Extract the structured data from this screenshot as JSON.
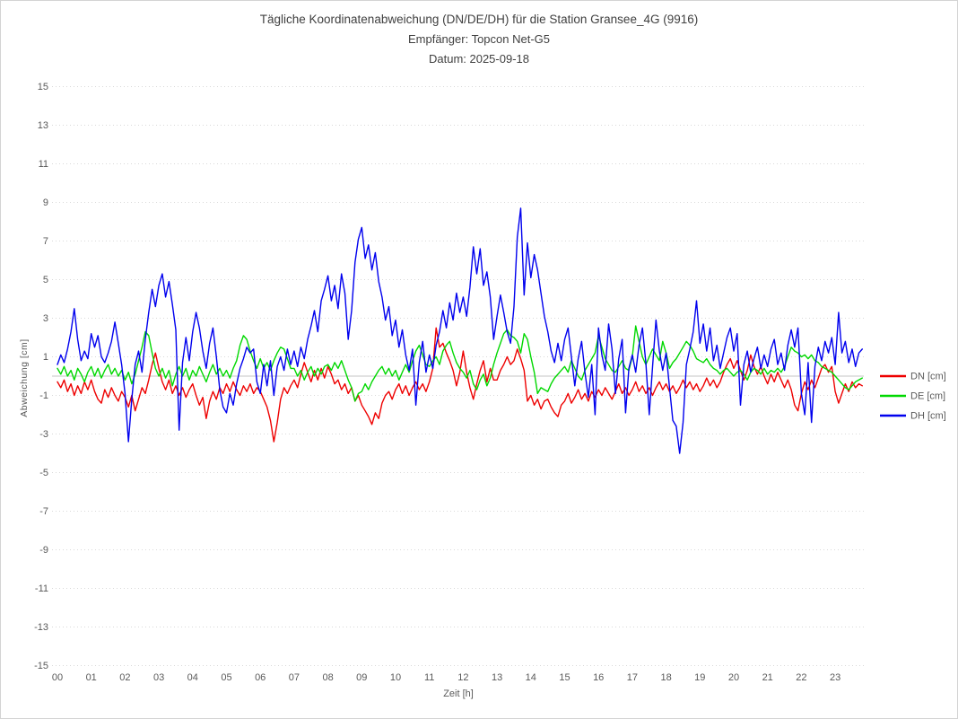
{
  "title": {
    "line1": "Tägliche Koordinatenabweichung (DN/DE/DH) für die Station Gransee_4G (9916)",
    "line2": "Empfänger: Topcon Net-G5",
    "line3": "Datum: 2025-09-18"
  },
  "axes": {
    "y_label": "Abweichung [cm]",
    "x_label": "Zeit [h]",
    "y_ticks": [
      15,
      13,
      11,
      9,
      7,
      5,
      3,
      1,
      -1,
      -3,
      -5,
      -7,
      -9,
      -11,
      -13,
      -15
    ],
    "x_ticks": [
      "00",
      "01",
      "02",
      "03",
      "04",
      "05",
      "06",
      "07",
      "08",
      "09",
      "10",
      "11",
      "12",
      "13",
      "14",
      "15",
      "16",
      "17",
      "18",
      "19",
      "20",
      "21",
      "22",
      "23"
    ]
  },
  "legend": {
    "position": "right",
    "entries": [
      {
        "label": "DN [cm]",
        "color": "#ee0000"
      },
      {
        "label": "DE [cm]",
        "color": "#00d800"
      },
      {
        "label": "DH [cm]",
        "color": "#0000ee"
      }
    ]
  },
  "colors": {
    "title_text": "#404040",
    "axis_text": "#595959",
    "gridline": "#d9d9d9",
    "zero_line": "#c6c6c6",
    "background": "#ffffff"
  },
  "chart_data": {
    "type": "line",
    "title": "Tägliche Koordinatenabweichung (DN/DE/DH) für die Station Gransee_4G (9916)",
    "subtitle": [
      "Empfänger: Topcon Net-G5",
      "Datum: 2025-09-18"
    ],
    "xlabel": "Zeit [h]",
    "ylabel": "Abweichung [cm]",
    "xlim": [
      0,
      24
    ],
    "ylim": [
      -15,
      15
    ],
    "y_tick_step": 2,
    "grid": "dotted horizontal at odd values, solid line at 0",
    "x_unit": "hours",
    "x_start": 0,
    "x_step": 0.1,
    "series": [
      {
        "name": "DN [cm]",
        "color": "#ee0000",
        "values": [
          -0.3,
          -0.6,
          -0.2,
          -0.8,
          -0.4,
          -1.0,
          -0.5,
          -0.9,
          -0.3,
          -0.7,
          -0.2,
          -0.8,
          -1.2,
          -1.4,
          -0.7,
          -1.1,
          -0.6,
          -1.0,
          -1.3,
          -0.8,
          -1.1,
          -1.6,
          -1.0,
          -1.8,
          -1.2,
          -0.6,
          -0.9,
          -0.2,
          0.6,
          1.2,
          0.4,
          -0.3,
          -0.7,
          -0.2,
          -0.9,
          -0.5,
          -1.0,
          -0.6,
          -1.1,
          -0.7,
          -0.4,
          -1.0,
          -1.5,
          -1.1,
          -2.2,
          -1.3,
          -0.8,
          -1.2,
          -0.6,
          -0.9,
          -0.4,
          -0.8,
          -0.3,
          -0.7,
          -1.0,
          -0.5,
          -0.8,
          -0.4,
          -0.9,
          -0.6,
          -0.8,
          -1.2,
          -1.6,
          -2.3,
          -3.4,
          -2.4,
          -1.2,
          -0.6,
          -0.9,
          -0.5,
          -0.2,
          -0.6,
          0.1,
          0.7,
          0.2,
          -0.3,
          0.3,
          -0.2,
          0.4,
          -0.1,
          0.5,
          0.1,
          -0.4,
          -0.2,
          -0.7,
          -0.4,
          -0.9,
          -0.6,
          -1.3,
          -1.0,
          -1.5,
          -1.8,
          -2.1,
          -2.5,
          -1.9,
          -2.2,
          -1.4,
          -1.0,
          -0.8,
          -1.2,
          -0.7,
          -0.4,
          -0.9,
          -0.5,
          -1.0,
          -0.6,
          -0.3,
          -0.7,
          -0.4,
          -0.8,
          -0.3,
          0.4,
          2.5,
          1.5,
          1.7,
          1.2,
          0.8,
          0.3,
          -0.5,
          0.2,
          1.3,
          0.2,
          -0.6,
          -1.2,
          -0.4,
          0.3,
          0.8,
          -0.3,
          0.4,
          -0.2,
          -0.2,
          0.3,
          0.6,
          1.0,
          0.6,
          0.8,
          1.4,
          0.9,
          0.3,
          -1.3,
          -1.0,
          -1.5,
          -1.2,
          -1.7,
          -1.3,
          -1.2,
          -1.6,
          -1.9,
          -2.1,
          -1.5,
          -1.3,
          -0.9,
          -1.4,
          -1.1,
          -0.7,
          -1.2,
          -0.9,
          -1.3,
          -0.8,
          -1.1,
          -0.7,
          -1.0,
          -0.6,
          -0.9,
          -1.2,
          -0.8,
          -0.4,
          -0.9,
          -0.6,
          -1.0,
          -0.7,
          -0.3,
          -0.8,
          -0.5,
          -0.9,
          -0.6,
          -1.0,
          -0.6,
          -0.3,
          -0.7,
          -0.4,
          -0.8,
          -0.5,
          -0.9,
          -0.6,
          -0.2,
          -0.6,
          -0.3,
          -0.7,
          -0.4,
          -0.8,
          -0.5,
          -0.1,
          -0.5,
          -0.2,
          -0.6,
          -0.3,
          0.2,
          0.6,
          0.9,
          0.4,
          0.8,
          0.3,
          -0.2,
          0.3,
          1.1,
          0.5,
          0.1,
          0.5,
          0.0,
          -0.4,
          0.1,
          -0.3,
          0.2,
          -0.2,
          -0.6,
          -0.2,
          -0.7,
          -1.5,
          -1.8,
          -0.9,
          -0.3,
          -0.7,
          -0.2,
          -0.6,
          -0.1,
          0.4,
          0.6,
          0.2,
          0.5,
          -0.8,
          -1.4,
          -0.9,
          -0.4,
          -0.8,
          -0.3,
          -0.6,
          -0.4,
          -0.5
        ]
      },
      {
        "name": "DE [cm]",
        "color": "#00d800",
        "values": [
          0.4,
          0.1,
          0.5,
          0.0,
          0.3,
          -0.2,
          0.4,
          0.1,
          -0.3,
          0.2,
          0.5,
          0.0,
          0.4,
          -0.1,
          0.3,
          0.6,
          0.1,
          0.4,
          0.0,
          0.3,
          -0.2,
          0.2,
          -0.4,
          0.1,
          0.8,
          1.5,
          2.3,
          2.1,
          1.2,
          0.4,
          0.0,
          0.4,
          -0.1,
          0.3,
          -0.5,
          0.1,
          0.5,
          0.0,
          0.4,
          -0.2,
          0.3,
          0.0,
          0.5,
          0.1,
          -0.3,
          0.2,
          0.6,
          0.1,
          0.4,
          0.0,
          0.3,
          -0.1,
          0.4,
          0.8,
          1.6,
          2.1,
          1.9,
          1.3,
          0.8,
          0.4,
          0.9,
          0.4,
          0.7,
          0.3,
          0.8,
          1.2,
          1.5,
          1.4,
          0.9,
          0.4,
          0.4,
          0.0,
          0.3,
          -0.2,
          0.2,
          0.5,
          0.0,
          0.4,
          0.1,
          0.5,
          0.6,
          0.3,
          0.7,
          0.4,
          0.8,
          0.3,
          -0.2,
          -0.6,
          -1.3,
          -0.9,
          -0.8,
          -0.4,
          -0.7,
          -0.3,
          0.0,
          0.3,
          0.5,
          0.1,
          0.4,
          0.0,
          0.3,
          -0.2,
          0.2,
          0.6,
          0.2,
          0.8,
          1.3,
          1.6,
          1.1,
          0.6,
          0.5,
          0.8,
          1.0,
          0.6,
          1.3,
          1.6,
          1.8,
          1.2,
          0.7,
          0.4,
          0.2,
          -0.1,
          0.3,
          -0.4,
          -0.7,
          -0.2,
          0.1,
          -0.5,
          -0.1,
          0.6,
          1.2,
          1.7,
          2.2,
          2.4,
          2.1,
          2.0,
          1.8,
          1.2,
          2.2,
          1.9,
          1.0,
          0.2,
          -0.9,
          -0.6,
          -0.7,
          -0.8,
          -0.4,
          -0.1,
          0.1,
          0.3,
          0.5,
          0.2,
          0.8,
          0.4,
          0.0,
          -0.2,
          0.3,
          0.6,
          0.9,
          1.2,
          2.1,
          1.5,
          0.9,
          0.6,
          0.3,
          0.2,
          0.5,
          0.8,
          0.4,
          0.3,
          1.0,
          2.6,
          1.8,
          1.0,
          0.6,
          1.0,
          1.4,
          1.1,
          0.8,
          1.8,
          1.2,
          0.4,
          0.7,
          0.9,
          1.2,
          1.5,
          1.8,
          1.6,
          1.3,
          0.9,
          0.8,
          0.7,
          0.9,
          0.6,
          0.4,
          0.3,
          0.1,
          0.3,
          0.4,
          0.2,
          0.0,
          0.2,
          0.3,
          0.1,
          -0.2,
          0.2,
          0.4,
          0.3,
          0.1,
          0.4,
          0.1,
          0.3,
          0.2,
          0.4,
          0.2,
          0.5,
          1.0,
          1.5,
          1.3,
          1.2,
          1.0,
          1.1,
          0.9,
          1.1,
          0.8,
          0.7,
          0.5,
          0.4,
          0.3,
          0.2,
          0.0,
          -0.2,
          -0.4,
          -0.6,
          -0.7,
          -0.5,
          -0.3,
          -0.2,
          -0.1
        ]
      },
      {
        "name": "DH [cm]",
        "color": "#0000ee",
        "values": [
          0.6,
          1.1,
          0.7,
          1.4,
          2.3,
          3.5,
          1.9,
          0.8,
          1.3,
          0.9,
          2.2,
          1.5,
          2.1,
          1.0,
          0.7,
          1.2,
          1.8,
          2.8,
          1.7,
          0.6,
          -0.9,
          -3.4,
          -1.2,
          0.6,
          1.3,
          0.2,
          1.9,
          3.3,
          4.5,
          3.6,
          4.7,
          5.3,
          4.1,
          4.9,
          3.7,
          2.4,
          -2.8,
          0.7,
          2.0,
          0.8,
          2.3,
          3.3,
          2.5,
          1.3,
          0.4,
          1.7,
          2.5,
          1.0,
          -0.7,
          -1.6,
          -1.9,
          -0.9,
          -1.5,
          -0.4,
          0.4,
          0.9,
          1.5,
          1.2,
          1.4,
          -0.3,
          -0.9,
          0.6,
          -0.5,
          0.8,
          -1.0,
          0.5,
          1.0,
          0.3,
          1.4,
          0.6,
          1.3,
          0.5,
          1.5,
          0.9,
          1.9,
          2.6,
          3.4,
          2.3,
          3.9,
          4.5,
          5.2,
          3.9,
          4.7,
          3.5,
          5.3,
          4.3,
          1.9,
          3.4,
          5.9,
          7.1,
          7.7,
          6.1,
          6.8,
          5.5,
          6.4,
          4.9,
          4.1,
          2.9,
          3.6,
          2.1,
          2.9,
          1.5,
          2.4,
          1.1,
          0.3,
          1.4,
          -1.5,
          0.7,
          1.8,
          0.2,
          1.1,
          0.4,
          1.6,
          2.3,
          3.4,
          2.5,
          3.8,
          2.9,
          4.3,
          3.3,
          4.1,
          3.1,
          4.6,
          6.7,
          5.3,
          6.6,
          4.7,
          5.4,
          4.1,
          1.9,
          3.1,
          4.2,
          3.3,
          2.3,
          1.7,
          3.6,
          7.2,
          8.7,
          4.2,
          6.9,
          5.1,
          6.3,
          5.5,
          4.3,
          3.1,
          2.3,
          1.3,
          0.7,
          1.7,
          0.8,
          1.9,
          2.5,
          1.0,
          -0.5,
          0.9,
          1.8,
          0.2,
          -1.1,
          0.6,
          -2.0,
          2.5,
          1.1,
          0.3,
          2.7,
          1.4,
          -0.9,
          0.9,
          1.9,
          -1.9,
          0.4,
          1.1,
          0.2,
          1.6,
          2.5,
          0.7,
          -2.0,
          0.5,
          2.9,
          1.3,
          0.3,
          1.2,
          -0.6,
          -2.3,
          -2.6,
          -4.0,
          -2.4,
          0.6,
          1.4,
          2.3,
          3.9,
          1.7,
          2.7,
          1.3,
          2.5,
          0.8,
          1.6,
          0.4,
          1.2,
          2.0,
          2.5,
          1.3,
          2.2,
          -1.5,
          0.6,
          1.3,
          0.2,
          0.9,
          1.5,
          0.4,
          1.1,
          0.5,
          1.4,
          1.9,
          0.6,
          1.2,
          0.3,
          1.6,
          2.4,
          1.5,
          2.5,
          -0.9,
          -2.0,
          0.7,
          -2.4,
          0.5,
          1.5,
          0.8,
          1.8,
          1.2,
          2.0,
          0.6,
          3.3,
          1.2,
          1.8,
          0.7,
          1.4,
          0.5,
          1.2,
          1.4
        ]
      }
    ]
  }
}
